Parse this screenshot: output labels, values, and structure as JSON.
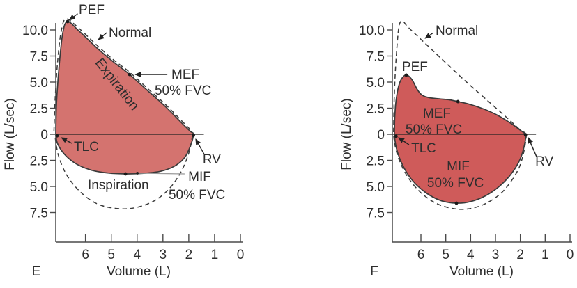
{
  "chart_data": {
    "type": "line",
    "title": "",
    "xlabel": "Volume (L)",
    "ylabel": "Flow (L/sec)",
    "x_axis_reversed": true,
    "x_range": [
      7.15,
      0
    ],
    "y_range": [
      -10.3,
      12.0
    ],
    "grid": false,
    "legend_position": "none",
    "line_color": "#3a3a3a",
    "dashed_color": "#3a3a3a",
    "axis_color": "#4a4a4a",
    "text_color": "#2e2e2e",
    "leader_color": "#9a9a9a",
    "panels": [
      {
        "letter": "E",
        "loop_fill": "#d4736f",
        "y_ticks": [
          {
            "f": 10,
            "label": "10.0"
          },
          {
            "f": 7.5,
            "label": "7.5"
          },
          {
            "f": 5,
            "label": "5.0"
          },
          {
            "f": 2.5,
            "label": "2.5"
          },
          {
            "f": 0,
            "label": "0"
          },
          {
            "f": -2.5,
            "label": "2.5"
          },
          {
            "f": -5,
            "label": "5.0"
          },
          {
            "f": -7.5,
            "label": "7.5"
          }
        ],
        "x_ticks": [
          {
            "v": 6,
            "label": "6"
          },
          {
            "v": 5,
            "label": "5"
          },
          {
            "v": 4,
            "label": "4"
          },
          {
            "v": 3,
            "label": "3"
          },
          {
            "v": 2,
            "label": "2"
          },
          {
            "v": 1,
            "label": "1"
          },
          {
            "v": 0,
            "label": "0"
          }
        ],
        "series": {
          "patient": {
            "expiration": [
              [
                7.15,
                0
              ],
              [
                7.12,
                3.0
              ],
              [
                7.02,
                6.5
              ],
              [
                6.88,
                9.7
              ],
              [
                6.69,
                10.8
              ],
              [
                6.25,
                9.9
              ],
              [
                5.5,
                8.15
              ],
              [
                4.9,
                6.9
              ],
              [
                4.29,
                5.73
              ],
              [
                3.6,
                4.2
              ],
              [
                2.9,
                2.65
              ],
              [
                2.3,
                1.15
              ],
              [
                1.95,
                0.3
              ],
              [
                1.82,
                0
              ]
            ],
            "inspiration": [
              [
                1.82,
                0
              ],
              [
                1.92,
                -1.0
              ],
              [
                2.15,
                -2.2
              ],
              [
                2.55,
                -3.05
              ],
              [
                3.1,
                -3.55
              ],
              [
                3.8,
                -3.75
              ],
              [
                4.45,
                -3.8
              ],
              [
                5.1,
                -3.72
              ],
              [
                5.75,
                -3.45
              ],
              [
                6.35,
                -2.85
              ],
              [
                6.8,
                -1.95
              ],
              [
                7.08,
                -0.9
              ],
              [
                7.15,
                0
              ]
            ]
          },
          "normal": {
            "expiration": [
              [
                7.22,
                0.3
              ],
              [
                7.17,
                3.6
              ],
              [
                7.07,
                7.2
              ],
              [
                6.93,
                10.0
              ],
              [
                6.74,
                11.05
              ],
              [
                6.25,
                10.15
              ],
              [
                5.5,
                8.4
              ],
              [
                4.9,
                7.1
              ],
              [
                4.29,
                5.95
              ],
              [
                3.6,
                4.4
              ],
              [
                2.9,
                2.85
              ],
              [
                2.3,
                1.35
              ],
              [
                1.88,
                0.3
              ]
            ],
            "inspiration": [
              [
                1.85,
                -0.1
              ],
              [
                2.0,
                -1.8
              ],
              [
                2.3,
                -3.6
              ],
              [
                2.75,
                -5.2
              ],
              [
                3.35,
                -6.4
              ],
              [
                4.1,
                -7.05
              ],
              [
                4.85,
                -7.1
              ],
              [
                5.6,
                -6.6
              ],
              [
                6.25,
                -5.4
              ],
              [
                6.75,
                -3.8
              ],
              [
                7.05,
                -2.0
              ],
              [
                7.18,
                -0.2
              ]
            ]
          }
        },
        "key_points": [
          {
            "name": "PEF",
            "v": 6.69,
            "f": 10.8
          },
          {
            "name": "MEF 50% FVC",
            "v": 4.29,
            "f": 5.73
          },
          {
            "name": "TLC",
            "v": 7.1,
            "f": -0.15
          },
          {
            "name": "RV",
            "v": 1.82,
            "f": -0.1
          },
          {
            "name": "MIF 50% FVC",
            "v": 4.45,
            "f": -3.8
          }
        ],
        "annotations": [
          {
            "text": "PEF",
            "v": 6.26,
            "f": 12.0
          },
          {
            "text": "Normal",
            "v": 5.1,
            "f": 9.8
          },
          {
            "text": "Expiration",
            "v": 4.91,
            "f": 5.0,
            "rotate": 52,
            "size": 20,
            "anchor": "middle"
          },
          {
            "text": "MEF",
            "v": 2.67,
            "f": 5.8
          },
          {
            "text": "50% FVC",
            "v": 3.32,
            "f": 4.27
          },
          {
            "text": "TLC",
            "v": 6.45,
            "f": -1.13
          },
          {
            "text": "RV",
            "v": 1.46,
            "f": -2.33
          },
          {
            "text": "Inspiration",
            "v": 5.91,
            "f": -4.8
          },
          {
            "text": "MIF",
            "v": 2.02,
            "f": -4.0
          },
          {
            "text": "50% FVC",
            "v": 2.78,
            "f": -5.73
          }
        ],
        "arrows": [
          {
            "from": [
              6.3,
              11.55
            ],
            "to": [
              6.62,
              10.95
            ]
          },
          {
            "from": [
              5.18,
              9.73
            ],
            "to": [
              5.5,
              9.07
            ]
          },
          {
            "from": [
              2.83,
              5.73
            ],
            "to": [
              4.07,
              5.73
            ]
          },
          {
            "from": [
              6.53,
              -0.87
            ],
            "to": [
              6.93,
              -0.33
            ]
          },
          {
            "from": [
              1.4,
              -1.93
            ],
            "to": [
              1.73,
              -0.47
            ]
          }
        ],
        "leaders": [
          {
            "from": [
              3.99,
              -3.73
            ],
            "to": [
              2.16,
              -3.8
            ]
          }
        ]
      },
      {
        "letter": "F",
        "loop_fill": "#cf5b5a",
        "y_ticks": [
          {
            "f": 10,
            "label": "10.0"
          },
          {
            "f": 7.5,
            "label": "7.5"
          },
          {
            "f": 5,
            "label": "5.0"
          },
          {
            "f": 2.5,
            "label": "2.5"
          },
          {
            "f": 0,
            "label": "0"
          },
          {
            "f": -2.5,
            "label": "2.5"
          },
          {
            "f": -5,
            "label": "5.0"
          },
          {
            "f": -7.5,
            "label": "7.5"
          }
        ],
        "x_ticks": [
          {
            "v": 6,
            "label": "6"
          },
          {
            "v": 5,
            "label": "5"
          },
          {
            "v": 4,
            "label": "4"
          },
          {
            "v": 3,
            "label": "3"
          },
          {
            "v": 2,
            "label": "2"
          },
          {
            "v": 1,
            "label": "1"
          },
          {
            "v": 0,
            "label": "0"
          }
        ],
        "series": {
          "patient": {
            "expiration": [
              [
                7.07,
                -0.1
              ],
              [
                7.05,
                1.8
              ],
              [
                6.98,
                3.6
              ],
              [
                6.86,
                4.9
              ],
              [
                6.7,
                5.55
              ],
              [
                6.55,
                5.67
              ],
              [
                6.35,
                5.2
              ],
              [
                6.15,
                4.3
              ],
              [
                5.95,
                3.75
              ],
              [
                5.65,
                3.5
              ],
              [
                5.2,
                3.38
              ],
              [
                4.85,
                3.3
              ],
              [
                4.51,
                3.13
              ],
              [
                4.0,
                2.85
              ],
              [
                3.45,
                2.4
              ],
              [
                2.9,
                1.8
              ],
              [
                2.35,
                1.0
              ],
              [
                1.95,
                0.3
              ],
              [
                1.79,
                0
              ]
            ],
            "inspiration": [
              [
                1.79,
                0
              ],
              [
                1.85,
                -1.2
              ],
              [
                2.05,
                -2.6
              ],
              [
                2.4,
                -3.9
              ],
              [
                2.85,
                -5.0
              ],
              [
                3.4,
                -5.9
              ],
              [
                4.0,
                -6.45
              ],
              [
                4.57,
                -6.6
              ],
              [
                5.2,
                -6.35
              ],
              [
                5.8,
                -5.6
              ],
              [
                6.35,
                -4.4
              ],
              [
                6.75,
                -2.9
              ],
              [
                6.98,
                -1.4
              ],
              [
                7.07,
                -0.15
              ]
            ]
          },
          "normal": {
            "expiration": [
              [
                7.1,
                0.2
              ],
              [
                7.08,
                3.0
              ],
              [
                7.03,
                6.0
              ],
              [
                6.95,
                8.8
              ],
              [
                6.87,
                10.5
              ],
              [
                6.73,
                10.85
              ],
              [
                6.55,
                10.35
              ],
              [
                6.0,
                9.1
              ],
              [
                5.2,
                7.3
              ],
              [
                4.3,
                5.3
              ],
              [
                3.4,
                3.4
              ],
              [
                2.5,
                1.5
              ],
              [
                1.95,
                0.3
              ],
              [
                1.75,
                0
              ]
            ],
            "inspiration": [
              [
                1.75,
                0
              ],
              [
                1.85,
                -1.6
              ],
              [
                2.05,
                -3.2
              ],
              [
                2.4,
                -4.6
              ],
              [
                2.85,
                -5.8
              ],
              [
                3.45,
                -6.7
              ],
              [
                4.1,
                -7.15
              ],
              [
                4.75,
                -7.1
              ],
              [
                5.4,
                -6.6
              ],
              [
                6.0,
                -5.6
              ],
              [
                6.5,
                -4.2
              ],
              [
                6.85,
                -2.6
              ],
              [
                7.03,
                -1.2
              ],
              [
                7.1,
                -0.1
              ]
            ]
          }
        },
        "key_points": [
          {
            "name": "TLC",
            "v": 7.0,
            "f": -0.2
          },
          {
            "name": "PEF",
            "v": 6.59,
            "f": 5.67
          },
          {
            "name": "MEF 50% FVC",
            "v": 4.51,
            "f": 3.13
          },
          {
            "name": "RV",
            "v": 1.79,
            "f": -0.05
          },
          {
            "name": "MIF 50% FVC",
            "v": 4.57,
            "f": -6.6
          }
        ],
        "annotations": [
          {
            "text": "Normal",
            "v": 5.41,
            "f": 10.0
          },
          {
            "text": "PEF",
            "v": 6.76,
            "f": 6.53
          },
          {
            "text": "MEF",
            "v": 5.92,
            "f": 2.07
          },
          {
            "text": "50% FVC",
            "v": 6.62,
            "f": 0.53
          },
          {
            "text": "TLC",
            "v": 6.39,
            "f": -1.27
          },
          {
            "text": "MIF",
            "v": 4.96,
            "f": -3.0
          },
          {
            "text": "50% FVC",
            "v": 5.75,
            "f": -4.6
          },
          {
            "text": "RV",
            "v": 1.4,
            "f": -2.53
          }
        ],
        "arrows": [
          {
            "from": [
              5.5,
              9.73
            ],
            "to": [
              5.83,
              9.2
            ]
          },
          {
            "from": [
              6.48,
              -1.0
            ],
            "to": [
              6.9,
              -0.33
            ]
          },
          {
            "from": [
              1.35,
              -2.13
            ],
            "to": [
              1.68,
              -0.33
            ]
          }
        ],
        "leaders": []
      }
    ]
  }
}
